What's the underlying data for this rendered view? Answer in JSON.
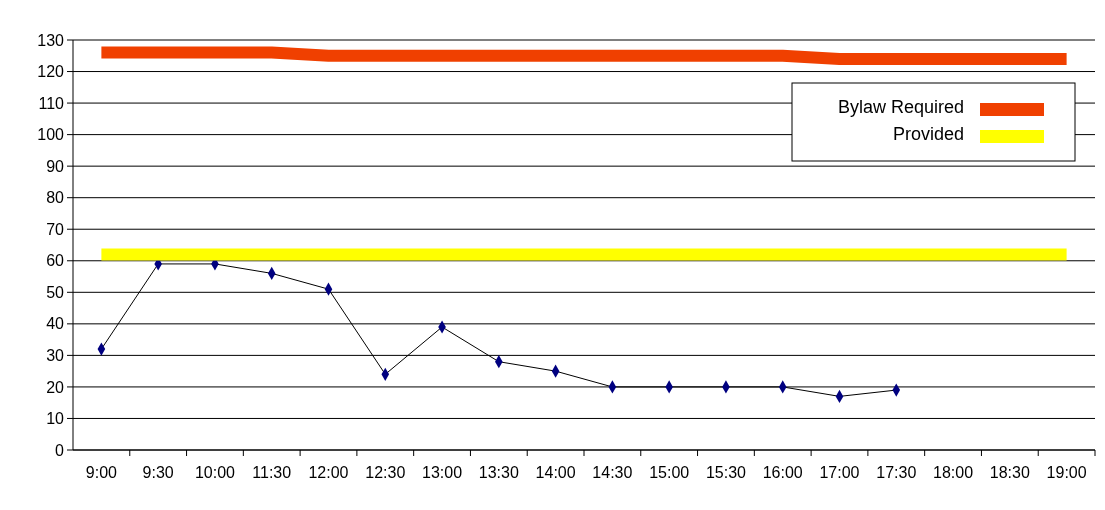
{
  "chart_data": {
    "type": "line",
    "categories": [
      "9:00",
      "9:30",
      "10:00",
      "11:30",
      "12:00",
      "12:30",
      "13:00",
      "13:30",
      "14:00",
      "14:30",
      "15:00",
      "15:30",
      "16:00",
      "17:00",
      "17:30",
      "18:00",
      "18:30",
      "19:00"
    ],
    "series": [
      {
        "color": "#000080",
        "values": [
          32,
          59,
          59,
          56,
          51,
          24,
          39,
          28,
          25,
          20,
          20,
          20,
          20,
          17,
          19,
          null,
          null,
          null
        ]
      },
      {
        "name": "Bylaw Required",
        "color": "#f04000",
        "marker": "none",
        "values": [
          126,
          126,
          126,
          126,
          125,
          125,
          125,
          125,
          125,
          125,
          125,
          125,
          125,
          124,
          124,
          124,
          124,
          124
        ]
      },
      {
        "name": "Provided",
        "color": "#ffff00",
        "marker": "none",
        "values": [
          62,
          62,
          62,
          62,
          62,
          62,
          62,
          62,
          62,
          62,
          62,
          62,
          62,
          62,
          62,
          62,
          62,
          62
        ]
      }
    ],
    "ylim": [
      0,
      130
    ],
    "yticks": [
      0,
      10,
      20,
      30,
      40,
      50,
      60,
      70,
      80,
      90,
      100,
      110,
      120,
      130
    ],
    "grid": "y",
    "marker": "diamond",
    "line_style": "solid",
    "legend": "top right"
  }
}
